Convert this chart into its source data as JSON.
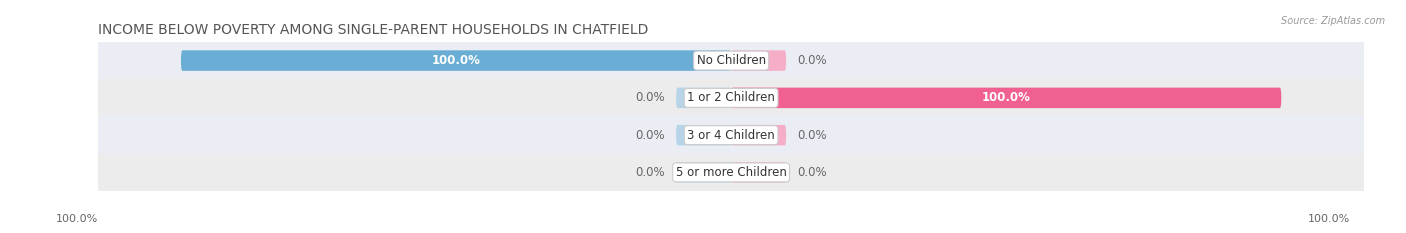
{
  "title": "INCOME BELOW POVERTY AMONG SINGLE-PARENT HOUSEHOLDS IN CHATFIELD",
  "source": "Source: ZipAtlas.com",
  "categories": [
    "No Children",
    "1 or 2 Children",
    "3 or 4 Children",
    "5 or more Children"
  ],
  "father_values": [
    100.0,
    0.0,
    0.0,
    0.0
  ],
  "mother_values": [
    0.0,
    100.0,
    0.0,
    0.0
  ],
  "father_color": "#6aaed6",
  "father_color_light": "#b8d4e8",
  "mother_color": "#f06090",
  "mother_color_light": "#f5adc8",
  "bar_height": 0.55,
  "row_bg_even": "#eaeef4",
  "row_bg_odd": "#ececec",
  "title_fontsize": 10,
  "label_fontsize": 8.5,
  "category_fontsize": 8.5,
  "bottom_left_label": "100.0%",
  "bottom_right_label": "100.0%",
  "xlim_left": -115,
  "xlim_right": 115
}
